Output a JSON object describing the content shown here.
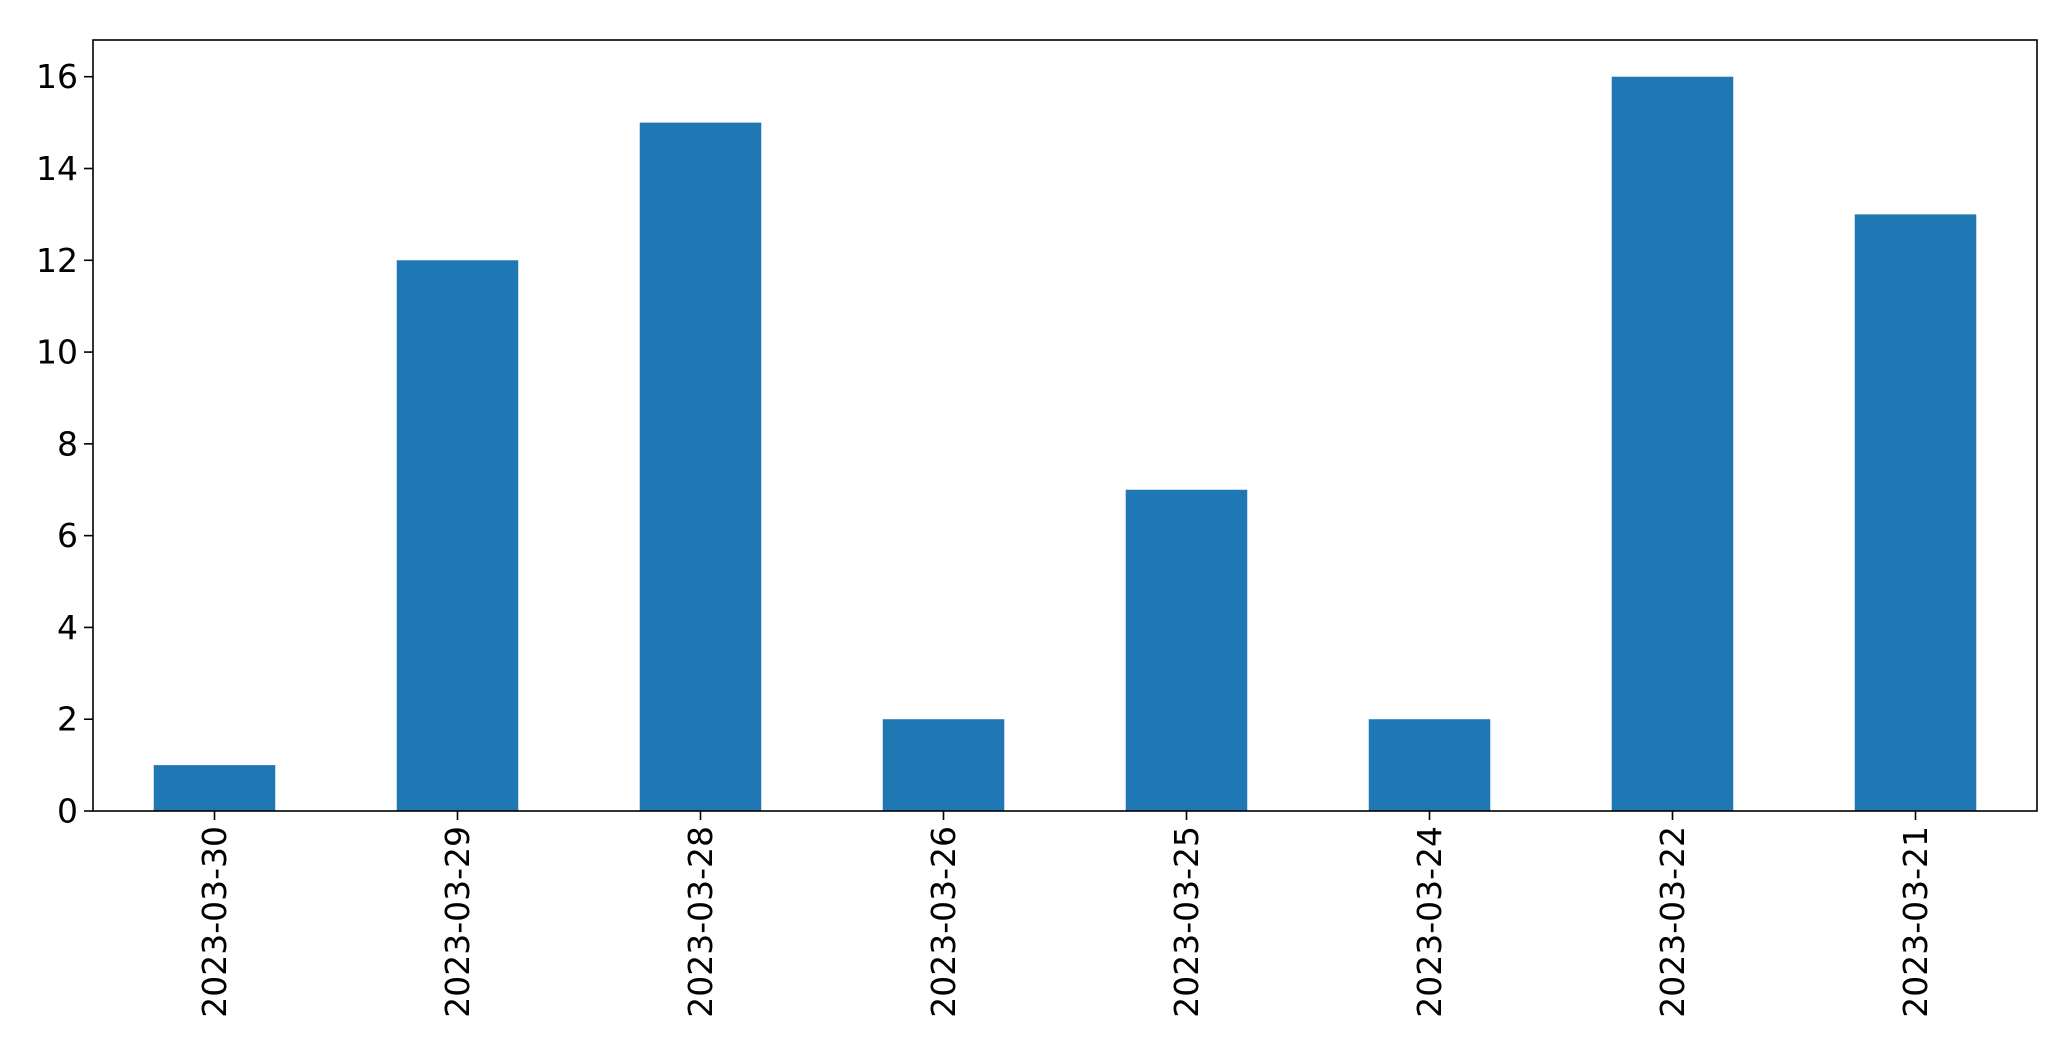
{
  "chart_data": {
    "type": "bar",
    "categories": [
      "2023-03-30",
      "2023-03-29",
      "2023-03-28",
      "2023-03-26",
      "2023-03-25",
      "2023-03-24",
      "2023-03-22",
      "2023-03-21"
    ],
    "values": [
      1,
      12,
      15,
      2,
      7,
      2,
      16,
      13
    ],
    "title": "",
    "xlabel": "",
    "ylabel": "",
    "ylim": [
      0,
      16.8
    ],
    "yticks": [
      0,
      2,
      4,
      6,
      8,
      10,
      12,
      14,
      16
    ],
    "grid": false,
    "legend": "none",
    "bar_color": "#1f77b4",
    "xtick_rotation": "vertical"
  }
}
